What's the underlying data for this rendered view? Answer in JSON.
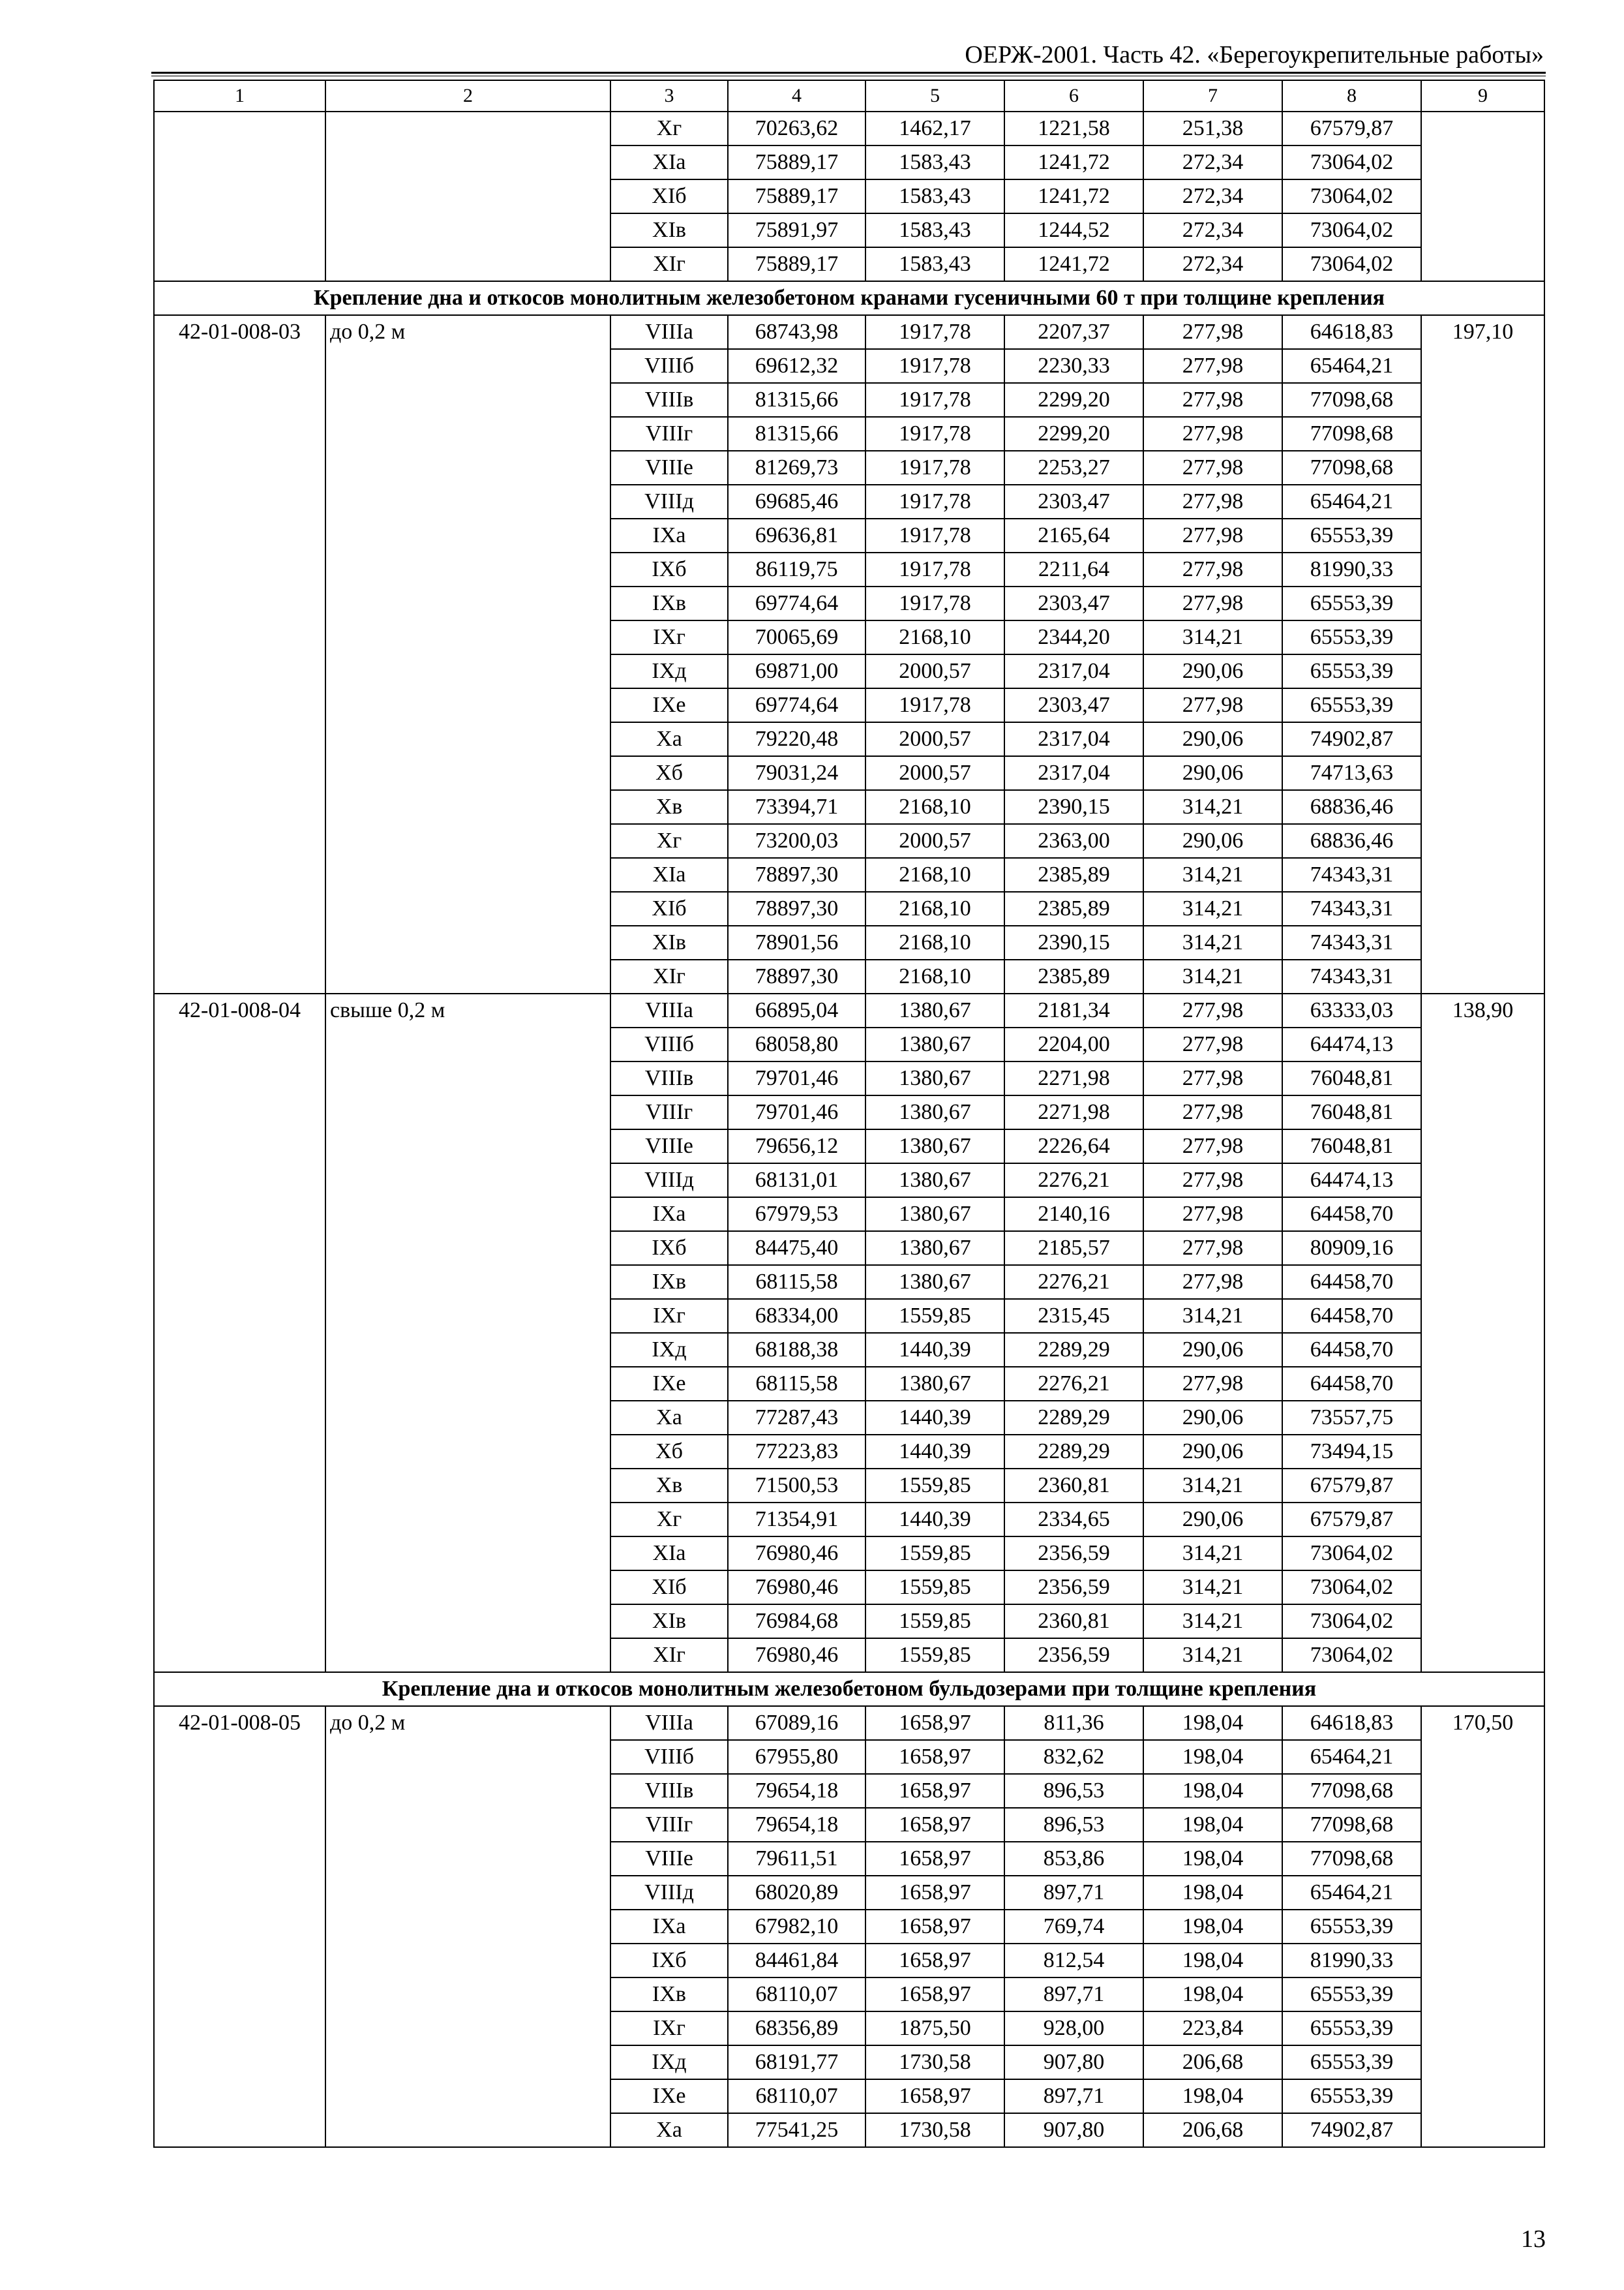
{
  "header": {
    "title": "ОЕРЖ-2001. Часть 42. «Берегоукрепительные работы»"
  },
  "column_numbers": [
    "1",
    "2",
    "3",
    "4",
    "5",
    "6",
    "7",
    "8",
    "9"
  ],
  "blocks": [
    {
      "type": "group",
      "code": "",
      "desc": "",
      "col9": "",
      "rows": [
        [
          "Xг",
          "70263,62",
          "1462,17",
          "1221,58",
          "251,38",
          "67579,87"
        ],
        [
          "XIa",
          "75889,17",
          "1583,43",
          "1241,72",
          "272,34",
          "73064,02"
        ],
        [
          "XIб",
          "75889,17",
          "1583,43",
          "1241,72",
          "272,34",
          "73064,02"
        ],
        [
          "XIв",
          "75891,97",
          "1583,43",
          "1244,52",
          "272,34",
          "73064,02"
        ],
        [
          "XIг",
          "75889,17",
          "1583,43",
          "1241,72",
          "272,34",
          "73064,02"
        ]
      ]
    },
    {
      "type": "section",
      "title": "Крепление дна и откосов монолитным железобетоном кранами гусеничными 60 т при толщине крепления"
    },
    {
      "type": "group",
      "code": "42-01-008-03",
      "desc": "до 0,2 м",
      "col9": "197,10",
      "rows": [
        [
          "VIIIa",
          "68743,98",
          "1917,78",
          "2207,37",
          "277,98",
          "64618,83"
        ],
        [
          "VIIIб",
          "69612,32",
          "1917,78",
          "2230,33",
          "277,98",
          "65464,21"
        ],
        [
          "VIIIв",
          "81315,66",
          "1917,78",
          "2299,20",
          "277,98",
          "77098,68"
        ],
        [
          "VIIIг",
          "81315,66",
          "1917,78",
          "2299,20",
          "277,98",
          "77098,68"
        ],
        [
          "VIIIe",
          "81269,73",
          "1917,78",
          "2253,27",
          "277,98",
          "77098,68"
        ],
        [
          "VIIIд",
          "69685,46",
          "1917,78",
          "2303,47",
          "277,98",
          "65464,21"
        ],
        [
          "IXa",
          "69636,81",
          "1917,78",
          "2165,64",
          "277,98",
          "65553,39"
        ],
        [
          "IXб",
          "86119,75",
          "1917,78",
          "2211,64",
          "277,98",
          "81990,33"
        ],
        [
          "IXв",
          "69774,64",
          "1917,78",
          "2303,47",
          "277,98",
          "65553,39"
        ],
        [
          "IXг",
          "70065,69",
          "2168,10",
          "2344,20",
          "314,21",
          "65553,39"
        ],
        [
          "IXд",
          "69871,00",
          "2000,57",
          "2317,04",
          "290,06",
          "65553,39"
        ],
        [
          "IXe",
          "69774,64",
          "1917,78",
          "2303,47",
          "277,98",
          "65553,39"
        ],
        [
          "Xa",
          "79220,48",
          "2000,57",
          "2317,04",
          "290,06",
          "74902,87"
        ],
        [
          "Xб",
          "79031,24",
          "2000,57",
          "2317,04",
          "290,06",
          "74713,63"
        ],
        [
          "Xв",
          "73394,71",
          "2168,10",
          "2390,15",
          "314,21",
          "68836,46"
        ],
        [
          "Xг",
          "73200,03",
          "2000,57",
          "2363,00",
          "290,06",
          "68836,46"
        ],
        [
          "XIa",
          "78897,30",
          "2168,10",
          "2385,89",
          "314,21",
          "74343,31"
        ],
        [
          "XIб",
          "78897,30",
          "2168,10",
          "2385,89",
          "314,21",
          "74343,31"
        ],
        [
          "XIв",
          "78901,56",
          "2168,10",
          "2390,15",
          "314,21",
          "74343,31"
        ],
        [
          "XIг",
          "78897,30",
          "2168,10",
          "2385,89",
          "314,21",
          "74343,31"
        ]
      ]
    },
    {
      "type": "group",
      "code": "42-01-008-04",
      "desc": "свыше 0,2 м",
      "col9": "138,90",
      "rows": [
        [
          "VIIIa",
          "66895,04",
          "1380,67",
          "2181,34",
          "277,98",
          "63333,03"
        ],
        [
          "VIIIб",
          "68058,80",
          "1380,67",
          "2204,00",
          "277,98",
          "64474,13"
        ],
        [
          "VIIIв",
          "79701,46",
          "1380,67",
          "2271,98",
          "277,98",
          "76048,81"
        ],
        [
          "VIIIг",
          "79701,46",
          "1380,67",
          "2271,98",
          "277,98",
          "76048,81"
        ],
        [
          "VIIIe",
          "79656,12",
          "1380,67",
          "2226,64",
          "277,98",
          "76048,81"
        ],
        [
          "VIIIд",
          "68131,01",
          "1380,67",
          "2276,21",
          "277,98",
          "64474,13"
        ],
        [
          "IXa",
          "67979,53",
          "1380,67",
          "2140,16",
          "277,98",
          "64458,70"
        ],
        [
          "IXб",
          "84475,40",
          "1380,67",
          "2185,57",
          "277,98",
          "80909,16"
        ],
        [
          "IXв",
          "68115,58",
          "1380,67",
          "2276,21",
          "277,98",
          "64458,70"
        ],
        [
          "IXг",
          "68334,00",
          "1559,85",
          "2315,45",
          "314,21",
          "64458,70"
        ],
        [
          "IXд",
          "68188,38",
          "1440,39",
          "2289,29",
          "290,06",
          "64458,70"
        ],
        [
          "IXe",
          "68115,58",
          "1380,67",
          "2276,21",
          "277,98",
          "64458,70"
        ],
        [
          "Xa",
          "77287,43",
          "1440,39",
          "2289,29",
          "290,06",
          "73557,75"
        ],
        [
          "Xб",
          "77223,83",
          "1440,39",
          "2289,29",
          "290,06",
          "73494,15"
        ],
        [
          "Xв",
          "71500,53",
          "1559,85",
          "2360,81",
          "314,21",
          "67579,87"
        ],
        [
          "Xг",
          "71354,91",
          "1440,39",
          "2334,65",
          "290,06",
          "67579,87"
        ],
        [
          "XIa",
          "76980,46",
          "1559,85",
          "2356,59",
          "314,21",
          "73064,02"
        ],
        [
          "XIб",
          "76980,46",
          "1559,85",
          "2356,59",
          "314,21",
          "73064,02"
        ],
        [
          "XIв",
          "76984,68",
          "1559,85",
          "2360,81",
          "314,21",
          "73064,02"
        ],
        [
          "XIг",
          "76980,46",
          "1559,85",
          "2356,59",
          "314,21",
          "73064,02"
        ]
      ]
    },
    {
      "type": "section",
      "title": "Крепление дна и откосов монолитным железобетоном бульдозерами при толщине крепления"
    },
    {
      "type": "group",
      "code": "42-01-008-05",
      "desc": "до 0,2 м",
      "col9": "170,50",
      "rows": [
        [
          "VIIIa",
          "67089,16",
          "1658,97",
          "811,36",
          "198,04",
          "64618,83"
        ],
        [
          "VIIIб",
          "67955,80",
          "1658,97",
          "832,62",
          "198,04",
          "65464,21"
        ],
        [
          "VIIIв",
          "79654,18",
          "1658,97",
          "896,53",
          "198,04",
          "77098,68"
        ],
        [
          "VIIIг",
          "79654,18",
          "1658,97",
          "896,53",
          "198,04",
          "77098,68"
        ],
        [
          "VIIIe",
          "79611,51",
          "1658,97",
          "853,86",
          "198,04",
          "77098,68"
        ],
        [
          "VIIIд",
          "68020,89",
          "1658,97",
          "897,71",
          "198,04",
          "65464,21"
        ],
        [
          "IXa",
          "67982,10",
          "1658,97",
          "769,74",
          "198,04",
          "65553,39"
        ],
        [
          "IXб",
          "84461,84",
          "1658,97",
          "812,54",
          "198,04",
          "81990,33"
        ],
        [
          "IXв",
          "68110,07",
          "1658,97",
          "897,71",
          "198,04",
          "65553,39"
        ],
        [
          "IXг",
          "68356,89",
          "1875,50",
          "928,00",
          "223,84",
          "65553,39"
        ],
        [
          "IXд",
          "68191,77",
          "1730,58",
          "907,80",
          "206,68",
          "65553,39"
        ],
        [
          "IXe",
          "68110,07",
          "1658,97",
          "897,71",
          "198,04",
          "65553,39"
        ],
        [
          "Xa",
          "77541,25",
          "1730,58",
          "907,80",
          "206,68",
          "74902,87"
        ]
      ]
    }
  ],
  "page_number": "13"
}
